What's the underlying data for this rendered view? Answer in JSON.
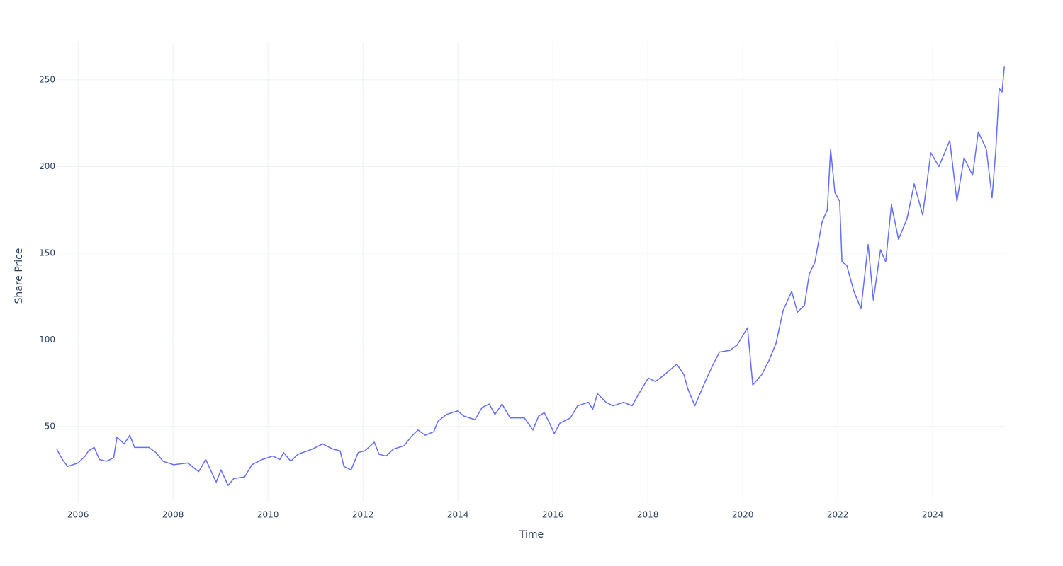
{
  "chart_data": {
    "type": "line",
    "xlabel": "Time",
    "ylabel": "Share Price",
    "x": [
      2005.55,
      2005.67,
      2005.78,
      2006.0,
      2006.15,
      2006.22,
      2006.34,
      2006.45,
      2006.6,
      2006.75,
      2006.82,
      2006.97,
      2007.09,
      2007.19,
      2007.49,
      2007.64,
      2007.79,
      2008.01,
      2008.31,
      2008.54,
      2008.69,
      2008.84,
      2008.91,
      2009.01,
      2009.16,
      2009.28,
      2009.51,
      2009.66,
      2009.88,
      2010.1,
      2010.25,
      2010.33,
      2010.48,
      2010.63,
      2010.93,
      2011.15,
      2011.37,
      2011.52,
      2011.6,
      2011.75,
      2011.9,
      2012.04,
      2012.24,
      2012.34,
      2012.49,
      2012.64,
      2012.87,
      2013.01,
      2013.16,
      2013.31,
      2013.49,
      2013.58,
      2013.76,
      2013.99,
      2014.13,
      2014.36,
      2014.51,
      2014.66,
      2014.78,
      2014.93,
      2015.1,
      2015.4,
      2015.58,
      2015.7,
      2015.82,
      2015.93,
      2016.03,
      2016.15,
      2016.37,
      2016.52,
      2016.75,
      2016.84,
      2016.94,
      2017.12,
      2017.27,
      2017.49,
      2017.67,
      2017.79,
      2018.01,
      2018.16,
      2018.31,
      2018.61,
      2018.76,
      2018.84,
      2018.99,
      2019.21,
      2019.36,
      2019.51,
      2019.73,
      2019.88,
      2020.1,
      2020.21,
      2020.4,
      2020.55,
      2020.7,
      2020.85,
      2021.03,
      2021.15,
      2021.3,
      2021.4,
      2021.52,
      2021.67,
      2021.78,
      2021.85,
      2021.94,
      2022.04,
      2022.09,
      2022.19,
      2022.34,
      2022.49,
      2022.64,
      2022.75,
      2022.9,
      2023.01,
      2023.13,
      2023.28,
      2023.46,
      2023.61,
      2023.79,
      2023.96,
      2024.13,
      2024.36,
      2024.51,
      2024.66,
      2024.84,
      2024.96,
      2025.13,
      2025.25,
      2025.33,
      2025.4,
      2025.46,
      2025.51
    ],
    "series": [
      {
        "color": "#636efa",
        "values": [
          37,
          31,
          27,
          29,
          33,
          36,
          38,
          31,
          30,
          32,
          44,
          40,
          45,
          38,
          38,
          35,
          30,
          28,
          29,
          24,
          31,
          22,
          18,
          25,
          16,
          20,
          21,
          28,
          31,
          33,
          31,
          35,
          30,
          34,
          37,
          40,
          37,
          36,
          27,
          25,
          35,
          36,
          41,
          34,
          33,
          37,
          39,
          44,
          48,
          45,
          47,
          53,
          57,
          59,
          56,
          54,
          61,
          63,
          57,
          63,
          55,
          55,
          48,
          56,
          58,
          52,
          46,
          52,
          55,
          62,
          64,
          60,
          69,
          64,
          62,
          64,
          62,
          68,
          78,
          76,
          79,
          86,
          80,
          72,
          62,
          76,
          85,
          93,
          94,
          97,
          107,
          74,
          80,
          88,
          98,
          117,
          128,
          116,
          120,
          138,
          145,
          168,
          175,
          210,
          185,
          180,
          145,
          143,
          128,
          118,
          155,
          123,
          152,
          145,
          178,
          158,
          170,
          190,
          172,
          208,
          200,
          215,
          180,
          205,
          195,
          220,
          210,
          182,
          210,
          245,
          243,
          258
        ]
      }
    ],
    "xlim": [
      2005.55,
      2025.55
    ],
    "ylim": [
      6.3,
      271.6
    ],
    "xticks": [
      2006,
      2008,
      2010,
      2012,
      2014,
      2016,
      2018,
      2020,
      2022,
      2024
    ],
    "yticks": [
      50,
      100,
      150,
      200,
      250
    ],
    "grid": true
  }
}
